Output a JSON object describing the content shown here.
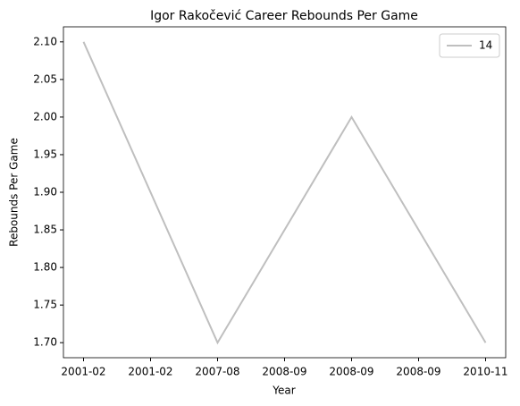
{
  "chart_data": {
    "type": "line",
    "title": "Igor Rakočević Career Rebounds Per Game",
    "x_label": "Year",
    "y_label": "Rebounds Per Game",
    "x": [
      0,
      1,
      2,
      3
    ],
    "series": [
      {
        "name": "14",
        "color": "#bfbfbf",
        "values": [
          2.1,
          1.7,
          2.0,
          1.7
        ]
      }
    ],
    "xlim": [
      -0.15,
      3.15
    ],
    "xticks": [
      {
        "value": 0,
        "label": "2001-02"
      },
      {
        "value": 0.5,
        "label": "2001-02"
      },
      {
        "value": 1,
        "label": "2007-08"
      },
      {
        "value": 1.5,
        "label": "2008-09"
      },
      {
        "value": 2,
        "label": "2008-09"
      },
      {
        "value": 2.5,
        "label": "2008-09"
      },
      {
        "value": 3,
        "label": "2010-11"
      }
    ],
    "ylim": [
      1.68,
      2.12
    ],
    "yticks": [
      {
        "value": 1.7,
        "label": "1.70"
      },
      {
        "value": 1.75,
        "label": "1.75"
      },
      {
        "value": 1.8,
        "label": "1.80"
      },
      {
        "value": 1.85,
        "label": "1.85"
      },
      {
        "value": 1.9,
        "label": "1.90"
      },
      {
        "value": 1.95,
        "label": "1.95"
      },
      {
        "value": 2.0,
        "label": "2.00"
      },
      {
        "value": 2.05,
        "label": "2.05"
      },
      {
        "value": 2.1,
        "label": "2.10"
      }
    ],
    "legend": "upper right",
    "grid": false
  }
}
